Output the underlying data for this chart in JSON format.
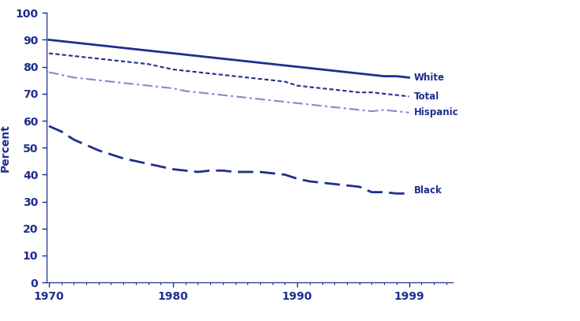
{
  "years": [
    1970,
    1971,
    1972,
    1973,
    1974,
    1975,
    1976,
    1977,
    1978,
    1979,
    1980,
    1981,
    1982,
    1983,
    1984,
    1985,
    1986,
    1987,
    1988,
    1989,
    1990,
    1991,
    1992,
    1993,
    1994,
    1995,
    1996,
    1997,
    1998,
    1999
  ],
  "white": [
    90,
    89.5,
    89,
    88.5,
    88,
    87.5,
    87,
    86.5,
    86,
    85.5,
    85,
    84.5,
    84,
    83.5,
    83,
    82.5,
    82,
    81.5,
    81,
    80.5,
    80,
    79.5,
    79,
    78.5,
    78,
    77.5,
    77,
    76.5,
    76.5,
    76
  ],
  "total": [
    85,
    84.5,
    84,
    83.5,
    83,
    82.5,
    82,
    81.5,
    81,
    80,
    79,
    78.5,
    78,
    77.5,
    77,
    76.5,
    76,
    75.5,
    75,
    74.5,
    73,
    72.5,
    72,
    71.5,
    71,
    70.5,
    70.5,
    70,
    69.5,
    69
  ],
  "hispanic": [
    78,
    77,
    76,
    75.5,
    75,
    74.5,
    74,
    73.5,
    73,
    72.5,
    72,
    71,
    70.5,
    70,
    69.5,
    69,
    68.5,
    68,
    67.5,
    67,
    66.5,
    66,
    65.5,
    65,
    64.5,
    64,
    63.5,
    64,
    63.5,
    63
  ],
  "black": [
    58,
    56,
    53,
    51,
    49,
    47.5,
    46,
    45,
    44,
    43,
    42,
    41.5,
    41,
    41.5,
    41.5,
    41,
    41,
    41,
    40.5,
    40,
    38.5,
    37.5,
    37,
    36.5,
    36,
    35.5,
    33.5,
    33.5,
    33,
    33
  ],
  "line_color_dark": "#1f2e8e",
  "line_color_hispanic": "#8888cc",
  "label_color": "#1f2e8e",
  "ylabel": "Percent",
  "ylim": [
    0,
    100
  ],
  "yticks": [
    0,
    10,
    20,
    30,
    40,
    50,
    60,
    70,
    80,
    90,
    100
  ],
  "xticks": [
    1970,
    1980,
    1990,
    1999
  ],
  "bg_color": "#ffffff"
}
